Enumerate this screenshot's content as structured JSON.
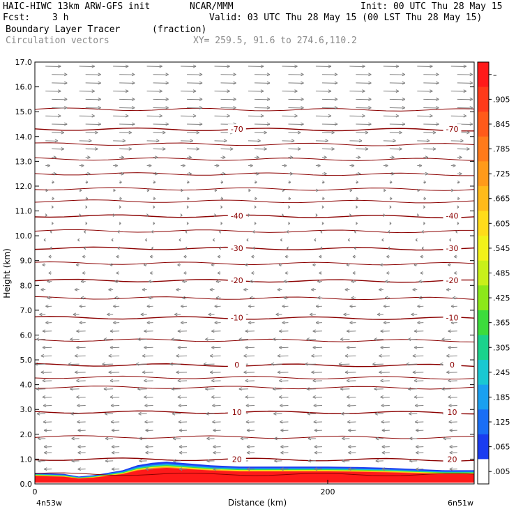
{
  "header": {
    "model": "HAIC-HIWC 13km ARW-GFS init",
    "org": "NCAR/MMM",
    "init": "Init: 00 UTC Thu 28 May 15",
    "fcst_label": "Fcst:",
    "fcst_value": "3 h",
    "valid": "Valid: 03 UTC Thu 28 May 15 (00 LST Thu 28 May 15)",
    "field": "Boundary Layer Tracer",
    "field_units": "(fraction)",
    "vectors": "Circulation vectors",
    "xy": "XY= 259.5, 91.6 to 274.6,110.2"
  },
  "chart_data": {
    "type": "heatmap",
    "ylabel": "Height (km)",
    "xlabel": "Distance (km)",
    "xlim": [
      0,
      300
    ],
    "ylim": [
      0,
      17
    ],
    "x_ticks": [
      "0",
      "200"
    ],
    "y_ticks": [
      "0.0",
      "1.0",
      "2.0",
      "3.0",
      "4.0",
      "5.0",
      "6.0",
      "7.0",
      "8.0",
      "9.0",
      "10.0",
      "11.0",
      "12.0",
      "13.0",
      "14.0",
      "15.0",
      "16.0",
      "17.0"
    ],
    "x_endpoint_left": "4n53w",
    "x_endpoint_right": "6n51w",
    "colorbar": {
      "labels": [
        "–",
        ".905",
        ".845",
        ".785",
        ".725",
        ".665",
        ".605",
        ".545",
        ".485",
        ".425",
        ".365",
        ".305",
        ".245",
        ".185",
        ".125",
        ".065",
        ".005"
      ],
      "colors": [
        "#ff1a1a",
        "#ff3a1a",
        "#ff5a1a",
        "#ff7a1a",
        "#ff9a1a",
        "#ffba1a",
        "#ffdc1a",
        "#f2f21a",
        "#c8f01a",
        "#8ce81a",
        "#3cdc3c",
        "#1ad28c",
        "#1ac8d2",
        "#1aa0f0",
        "#1a6ef5",
        "#1a3cf0",
        "#ffffff"
      ]
    },
    "contours": [
      {
        "label": "-70",
        "height_km": 14.3
      },
      {
        "label": "-40",
        "height_km": 10.8
      },
      {
        "label": "-30",
        "height_km": 9.5
      },
      {
        "label": "-20",
        "height_km": 8.2
      },
      {
        "label": "-10",
        "height_km": 6.7
      },
      {
        "label": "0",
        "height_km": 4.8
      },
      {
        "label": "10",
        "height_km": 2.9
      },
      {
        "label": "20",
        "height_km": 1.0
      }
    ],
    "unlabeled_contour_heights_km": [
      15.1,
      13.7,
      13.1,
      12.5,
      11.9,
      11.4,
      10.2,
      8.9,
      7.5,
      5.8,
      4.3,
      3.9,
      1.9,
      0.4
    ],
    "tracer_top_km": [
      [
        0,
        0.45
      ],
      [
        20,
        0.4
      ],
      [
        30,
        0.3
      ],
      [
        40,
        0.35
      ],
      [
        50,
        0.45
      ],
      [
        60,
        0.55
      ],
      [
        70,
        0.75
      ],
      [
        80,
        0.85
      ],
      [
        90,
        0.9
      ],
      [
        100,
        0.85
      ],
      [
        110,
        0.8
      ],
      [
        120,
        0.75
      ],
      [
        140,
        0.7
      ],
      [
        160,
        0.7
      ],
      [
        180,
        0.7
      ],
      [
        200,
        0.7
      ],
      [
        220,
        0.68
      ],
      [
        240,
        0.65
      ],
      [
        260,
        0.6
      ],
      [
        280,
        0.55
      ],
      [
        300,
        0.55
      ]
    ],
    "vector_profile": [
      {
        "height_km": 16.5,
        "u": 1.0
      },
      {
        "height_km": 15.5,
        "u": 1.0
      },
      {
        "height_km": 14.5,
        "u": 1.0
      },
      {
        "height_km": 13.5,
        "u": 0.8
      },
      {
        "height_km": 12.5,
        "u": 0.3
      },
      {
        "height_km": 11.5,
        "u": 0.15
      },
      {
        "height_km": 10.5,
        "u": 0.1
      },
      {
        "height_km": 9.5,
        "u": -0.1
      },
      {
        "height_km": 8.5,
        "u": -0.2
      },
      {
        "height_km": 7.5,
        "u": -0.3
      },
      {
        "height_km": 6.5,
        "u": -0.4
      },
      {
        "height_km": 5.5,
        "u": -0.6
      },
      {
        "height_km": 4.5,
        "u": -0.7
      },
      {
        "height_km": 3.5,
        "u": -0.6
      },
      {
        "height_km": 2.5,
        "u": -0.55
      },
      {
        "height_km": 1.5,
        "u": -0.5
      },
      {
        "height_km": 0.6,
        "u": -0.5
      }
    ],
    "colors": {
      "contour": "#8b0000",
      "vector": "#808080"
    }
  }
}
